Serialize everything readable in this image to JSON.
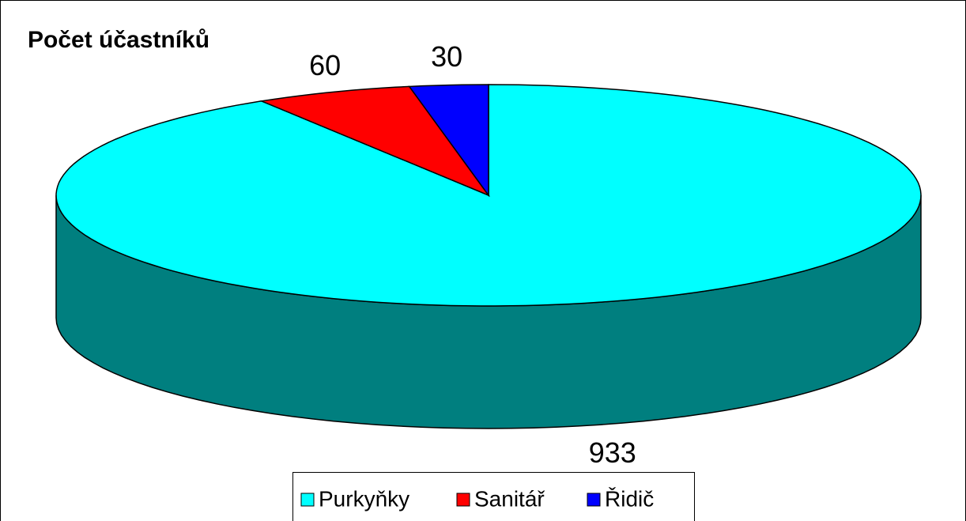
{
  "chart_data": {
    "type": "pie3d",
    "title": "Počet účastníků",
    "categories": [
      "Purkyňky",
      "Sanitář",
      "Řidič"
    ],
    "values": [
      933,
      60,
      30
    ],
    "colors": [
      "#00ffff",
      "#ff0000",
      "#0000ff"
    ],
    "legend": "bottom"
  }
}
